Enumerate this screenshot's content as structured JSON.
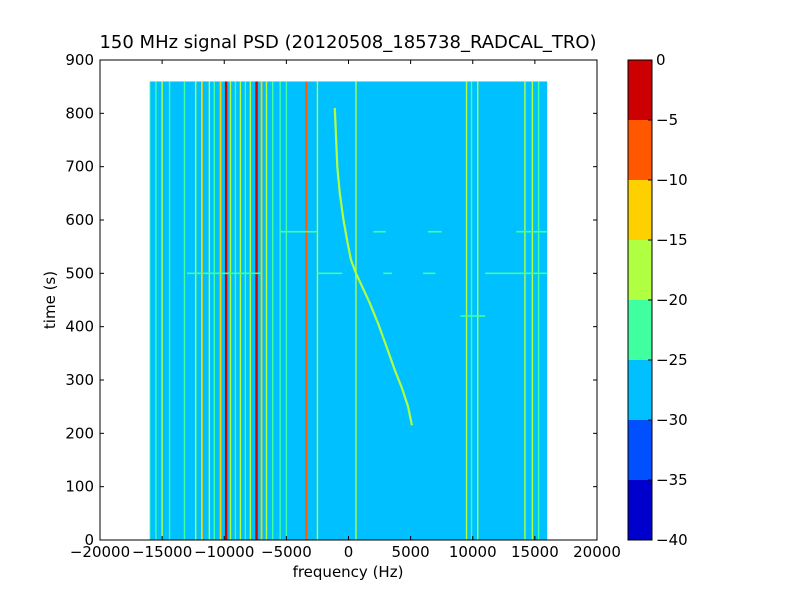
{
  "chart_data": {
    "type": "heatmap",
    "title": "150 MHz signal PSD (20120508_185738_RADCAL_TRO)",
    "xlabel": "frequency (Hz)",
    "ylabel": "time (s)",
    "xlim": [
      -20000,
      20000
    ],
    "ylim": [
      0,
      900
    ],
    "data_extent": {
      "x": [
        -16000,
        16000
      ],
      "y": [
        0,
        860
      ]
    },
    "xticks": [
      -20000,
      -15000,
      -10000,
      -5000,
      0,
      5000,
      10000,
      15000,
      20000
    ],
    "xtick_labels": [
      "−20000",
      "−15000",
      "−10000",
      "−5000",
      "0",
      "5000",
      "10000",
      "15000",
      "20000"
    ],
    "yticks": [
      0,
      100,
      200,
      300,
      400,
      500,
      600,
      700,
      800,
      900
    ],
    "ytick_labels": [
      "0",
      "100",
      "200",
      "300",
      "400",
      "500",
      "600",
      "700",
      "800",
      "900"
    ],
    "background_level": -27.5,
    "colorbar": {
      "range": [
        -40,
        0
      ],
      "levels": [
        {
          "from": -40,
          "to": -35,
          "color": "#0000cc"
        },
        {
          "from": -35,
          "to": -30,
          "color": "#0050ff"
        },
        {
          "from": -30,
          "to": -25,
          "color": "#00c0ff"
        },
        {
          "from": -25,
          "to": -20,
          "color": "#40ffa0"
        },
        {
          "from": -20,
          "to": -15,
          "color": "#b0ff40"
        },
        {
          "from": -15,
          "to": -10,
          "color": "#ffd000"
        },
        {
          "from": -10,
          "to": -5,
          "color": "#ff5800"
        },
        {
          "from": -5,
          "to": 0,
          "color": "#cc0000"
        }
      ],
      "ticks": [
        0,
        -5,
        -10,
        -15,
        -20,
        -25,
        -30,
        -35,
        -40
      ],
      "tick_labels": [
        "0",
        "−5",
        "−10",
        "−15",
        "−20",
        "−25",
        "−30",
        "−35",
        "−40"
      ]
    },
    "vertical_lines": [
      {
        "freq": -16000,
        "level": -22.5
      },
      {
        "freq": -15500,
        "level": -22.5
      },
      {
        "freq": -15000,
        "level": -17.5
      },
      {
        "freq": -14400,
        "level": -22.5
      },
      {
        "freq": -13200,
        "level": -22.5
      },
      {
        "freq": -12300,
        "level": -17.5
      },
      {
        "freq": -11800,
        "level": -12.5
      },
      {
        "freq": -11200,
        "level": -17.5
      },
      {
        "freq": -10800,
        "level": -22.5
      },
      {
        "freq": -10300,
        "level": -12.5
      },
      {
        "freq": -9850,
        "level": -2.5
      },
      {
        "freq": -9500,
        "level": -17.5
      },
      {
        "freq": -9100,
        "level": -22.5
      },
      {
        "freq": -8700,
        "level": -17.5
      },
      {
        "freq": -8300,
        "level": -22.5
      },
      {
        "freq": -7900,
        "level": -17.5
      },
      {
        "freq": -7400,
        "level": -2.5
      },
      {
        "freq": -7000,
        "level": -12.5
      },
      {
        "freq": -6600,
        "level": -17.5
      },
      {
        "freq": -6100,
        "level": -22.5
      },
      {
        "freq": -5500,
        "level": -22.5
      },
      {
        "freq": -5000,
        "level": -22.5
      },
      {
        "freq": -3400,
        "level": -7.5
      },
      {
        "freq": -2500,
        "level": -17.5
      },
      {
        "freq": 600,
        "level": -17.5
      },
      {
        "freq": 9500,
        "level": -17.5
      },
      {
        "freq": 9900,
        "level": -22.5
      },
      {
        "freq": 10400,
        "level": -17.5
      },
      {
        "freq": 14200,
        "level": -17.5
      },
      {
        "freq": 14800,
        "level": -17.5
      },
      {
        "freq": 15300,
        "level": -22.5
      }
    ],
    "drifting_signal": {
      "level": -17.5,
      "points": [
        [
          -1100,
          810
        ],
        [
          -900,
          700
        ],
        [
          -700,
          650
        ],
        [
          -400,
          600
        ],
        [
          -100,
          560
        ],
        [
          200,
          525
        ],
        [
          600,
          500
        ],
        [
          1100,
          475
        ],
        [
          1700,
          445
        ],
        [
          2400,
          405
        ],
        [
          3100,
          360
        ],
        [
          3700,
          320
        ],
        [
          4300,
          285
        ],
        [
          4800,
          250
        ],
        [
          5100,
          215
        ]
      ]
    },
    "horizontal_artifacts": [
      {
        "time": 500,
        "level": -22.5,
        "segments": [
          [
            -13000,
            -7000
          ],
          [
            -2500,
            -500
          ],
          [
            2800,
            3500
          ],
          [
            6000,
            7000
          ],
          [
            11000,
            16000
          ]
        ]
      },
      {
        "time": 578,
        "level": -22.5,
        "segments": [
          [
            -5500,
            -2500
          ],
          [
            2000,
            3000
          ],
          [
            6400,
            7500
          ],
          [
            13500,
            16000
          ]
        ]
      },
      {
        "time": 420,
        "level": -22.5,
        "segments": [
          [
            9000,
            11000
          ]
        ]
      }
    ]
  }
}
